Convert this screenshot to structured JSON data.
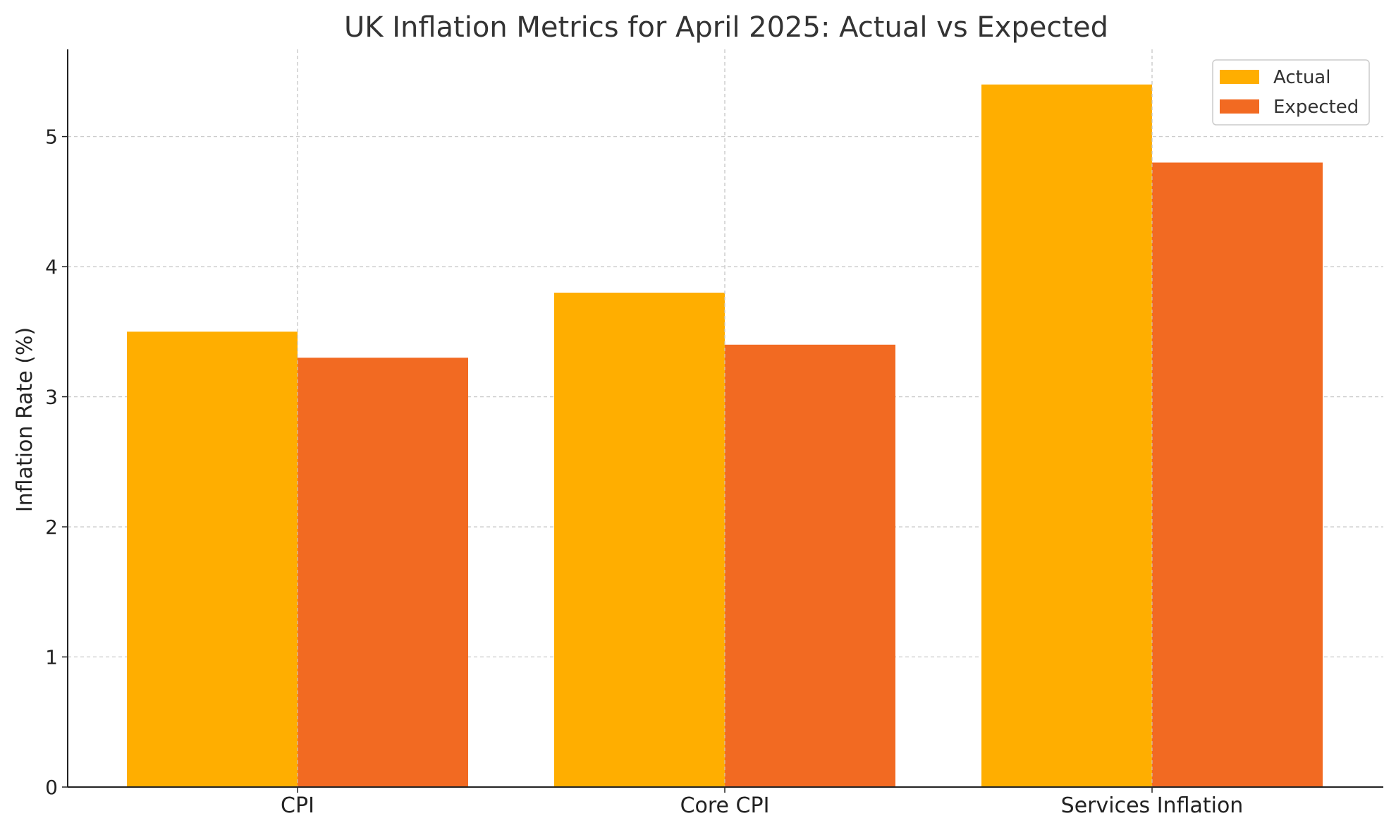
{
  "chart_data": {
    "type": "bar",
    "title": "UK Inflation Metrics for April 2025: Actual vs Expected",
    "xlabel": "",
    "ylabel": "Inflation Rate (%)",
    "categories": [
      "CPI",
      "Core CPI",
      "Services Inflation"
    ],
    "series": [
      {
        "name": "Actual",
        "values": [
          3.5,
          3.8,
          5.4
        ],
        "color": "#FFAE00"
      },
      {
        "name": "Expected",
        "values": [
          3.3,
          3.4,
          4.8
        ],
        "color": "#F26A22"
      }
    ],
    "ylim": [
      0,
      5.67
    ],
    "yticks": [
      0,
      1,
      2,
      3,
      4,
      5
    ],
    "grid": true,
    "legend_position": "top-right"
  }
}
